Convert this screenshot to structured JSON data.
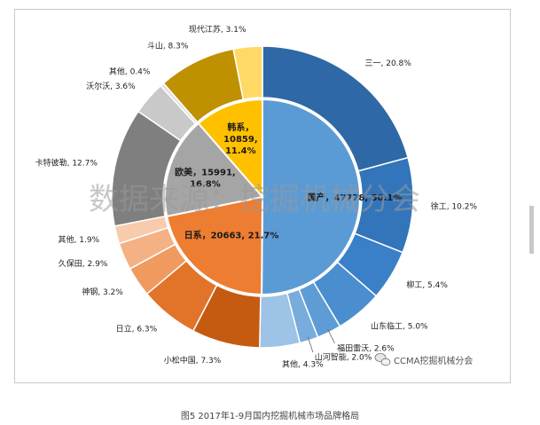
{
  "caption": "图5 2017年1-9月国内挖掘机械市场品牌格局",
  "watermark": "数据来源：挖掘机械分会",
  "brand_mark": "CCMA挖掘机械分会",
  "chart_data": {
    "type": "pie",
    "subtype": "nested-donut",
    "inner": [
      {
        "name": "国产",
        "value": 47778,
        "percent": 50.1,
        "label": "国产，47778, 50.1%",
        "color": "#5b9bd5"
      },
      {
        "name": "日系",
        "value": 20663,
        "percent": 21.7,
        "label": "日系，20663, 21.7%",
        "color": "#ed7d31"
      },
      {
        "name": "欧美",
        "value": 15991,
        "percent": 16.8,
        "label": "欧美，15991,|16.8%",
        "color": "#a5a5a5"
      },
      {
        "name": "韩系",
        "value": 10859,
        "percent": 11.4,
        "label": "韩系，|10859,|11.4%",
        "color": "#ffc000"
      }
    ],
    "outer": [
      {
        "name": "三一",
        "percent": 20.8,
        "label": "三一, 20.8%",
        "color": "#2e68a6"
      },
      {
        "name": "徐工",
        "percent": 10.2,
        "label": "徐工, 10.2%",
        "color": "#3275bb"
      },
      {
        "name": "柳工",
        "percent": 5.4,
        "label": "柳工, 5.4%",
        "color": "#3a80c8"
      },
      {
        "name": "山东临工",
        "percent": 5.0,
        "label": "山东临工, 5.0%",
        "color": "#4a8ed0"
      },
      {
        "name": "福田雷沃",
        "percent": 2.6,
        "label": "福田雷沃, 2.6%",
        "color": "#5e9cd6"
      },
      {
        "name": "山河智能",
        "percent": 2.0,
        "label": "山河智能, 2.0%",
        "color": "#77acdc"
      },
      {
        "name": "其他",
        "percent": 4.3,
        "label": "其他, 4.3%",
        "color": "#9dc3e6"
      },
      {
        "name": "小松中国",
        "percent": 7.3,
        "label": "小松中国, 7.3%",
        "color": "#c55a11"
      },
      {
        "name": "日立",
        "percent": 6.3,
        "label": "日立, 6.3%",
        "color": "#e2742a"
      },
      {
        "name": "神钢",
        "percent": 3.2,
        "label": "神钢, 3.2%",
        "color": "#f09a5f"
      },
      {
        "name": "久保田",
        "percent": 2.9,
        "label": "久保田, 2.9%",
        "color": "#f4b183"
      },
      {
        "name": "其他",
        "percent": 1.9,
        "label": "其他, 1.9%",
        "color": "#f8cbad"
      },
      {
        "name": "卡特彼勒",
        "percent": 12.7,
        "label": "卡特彼勒, 12.7%",
        "color": "#7f7f7f"
      },
      {
        "name": "沃尔沃",
        "percent": 3.6,
        "label": "沃尔沃, 3.6%",
        "color": "#c9c9c9"
      },
      {
        "name": "其他",
        "percent": 0.4,
        "label": "其他, 0.4%",
        "color": "#e0e0e0"
      },
      {
        "name": "斗山",
        "percent": 8.3,
        "label": "斗山, 8.3%",
        "color": "#bf9000"
      },
      {
        "name": "现代江苏",
        "percent": 3.1,
        "label": "现代江苏, 3.1%",
        "color": "#ffd966"
      }
    ]
  }
}
